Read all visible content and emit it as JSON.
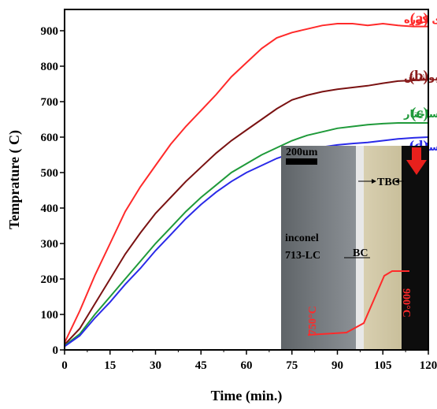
{
  "chart_data": {
    "type": "line",
    "xlabel": "Time (min.)",
    "ylabel": "Temprature ( C)",
    "xlim": [
      0,
      120
    ],
    "ylim": [
      0,
      960
    ],
    "x_ticks": [
      "0",
      "15",
      "30",
      "45",
      "60",
      "75",
      "90",
      "105",
      "120"
    ],
    "y_ticks": [
      "0",
      "100",
      "200",
      "300",
      "400",
      "500",
      "600",
      "700",
      "800",
      "900"
    ],
    "x": [
      0,
      5,
      10,
      15,
      20,
      25,
      30,
      35,
      40,
      45,
      50,
      55,
      60,
      65,
      70,
      75,
      80,
      85,
      90,
      95,
      100,
      105,
      110,
      115,
      120
    ],
    "series": [
      {
        "id": "a",
        "letter": "(a)",
        "name": "دمای کوره",
        "color": "#ff2a2a",
        "label_color": "#ff2a2a",
        "values": [
          20,
          110,
          210,
          300,
          390,
          460,
          520,
          580,
          630,
          675,
          720,
          770,
          810,
          850,
          880,
          895,
          905,
          915,
          920,
          920,
          915,
          920,
          915,
          912,
          912
        ]
      },
      {
        "id": "b",
        "letter": "(b)",
        "name": "دمای نمونه بدون پوشش",
        "color": "#7a1212",
        "label_color": "#8b1a1a",
        "values": [
          15,
          60,
          130,
          200,
          270,
          330,
          385,
          430,
          475,
          515,
          555,
          590,
          620,
          650,
          680,
          705,
          718,
          728,
          735,
          740,
          745,
          752,
          758,
          760,
          762
        ]
      },
      {
        "id": "c",
        "letter": "(c)",
        "name": "پوشش میکروساختار",
        "color": "#1f9a3a",
        "label_color": "#1f9a3a",
        "values": [
          12,
          45,
          100,
          150,
          200,
          250,
          300,
          345,
          390,
          430,
          465,
          500,
          525,
          550,
          570,
          590,
          605,
          615,
          625,
          630,
          635,
          638,
          640,
          640,
          640
        ]
      },
      {
        "id": "d",
        "letter": "(d)",
        "name": "پوشش نانوساختار",
        "color": "#2a2ae8",
        "label_color": "#2a2ae8",
        "values": [
          10,
          40,
          90,
          135,
          185,
          230,
          280,
          325,
          370,
          410,
          445,
          475,
          500,
          520,
          540,
          555,
          565,
          572,
          578,
          582,
          585,
          590,
          595,
          598,
          600
        ]
      }
    ],
    "inset": {
      "scale_label": "200um",
      "material_line1": "inconel",
      "material_line2": "713-LC",
      "tbc_label": "TBC",
      "bc_label": "BC",
      "temp_left": "750°C",
      "temp_right": "900°C"
    }
  }
}
